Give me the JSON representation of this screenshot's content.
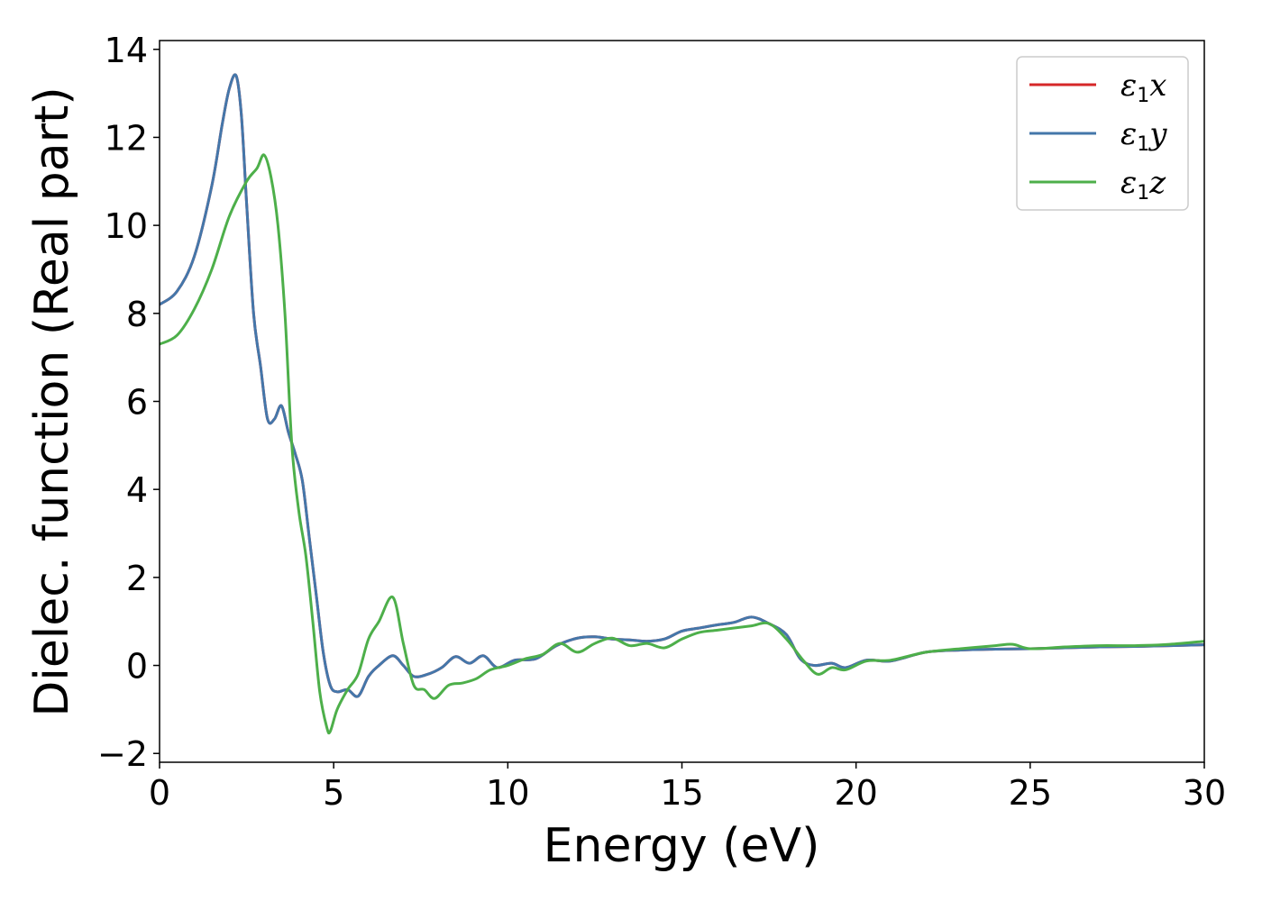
{
  "chart_data": {
    "type": "line",
    "xlabel": "Energy (eV)",
    "ylabel": "Dielec. function (Real part)",
    "xlim": [
      0,
      30
    ],
    "ylim": [
      -2.2,
      14.2
    ],
    "grid": false,
    "legend_position": "top-right",
    "x_ticks": [
      0,
      5,
      10,
      15,
      20,
      25,
      30
    ],
    "x_tick_labels": [
      "0",
      "5",
      "10",
      "15",
      "20",
      "25",
      "30"
    ],
    "y_ticks": [
      -2,
      0,
      2,
      4,
      6,
      8,
      10,
      12,
      14
    ],
    "y_tick_labels": [
      "−2",
      "0",
      "2",
      "4",
      "6",
      "8",
      "10",
      "12",
      "14"
    ],
    "series": [
      {
        "name": "ε1x",
        "legend_symbol": "ε",
        "legend_subscript": "1",
        "legend_suffix": "x",
        "color": "#d62728",
        "x": [
          0,
          0.5,
          1.0,
          1.5,
          1.8,
          2.0,
          2.2,
          2.35,
          2.5,
          2.7,
          2.9,
          3.1,
          3.3,
          3.5,
          3.7,
          3.9,
          4.1,
          4.3,
          4.5,
          4.7,
          4.9,
          5.1,
          5.4,
          5.7,
          6.0,
          6.3,
          6.7,
          7.0,
          7.3,
          7.7,
          8.1,
          8.5,
          8.9,
          9.3,
          9.7,
          10.2,
          10.8,
          11.4,
          12.0,
          12.5,
          13.0,
          13.5,
          14.0,
          14.5,
          15.0,
          15.5,
          16.0,
          16.5,
          17.0,
          17.5,
          18.0,
          18.4,
          18.8,
          19.3,
          19.7,
          20.3,
          21.0,
          22.0,
          23.0,
          24.0,
          25.0,
          26.0,
          27.0,
          28.0,
          29.0,
          30.0
        ],
        "y": [
          8.2,
          8.5,
          9.3,
          10.9,
          12.3,
          13.1,
          13.4,
          12.5,
          10.5,
          8.0,
          6.8,
          5.6,
          5.6,
          5.9,
          5.3,
          4.8,
          4.2,
          2.9,
          1.6,
          0.3,
          -0.45,
          -0.6,
          -0.55,
          -0.7,
          -0.25,
          0.0,
          0.22,
          0.0,
          -0.25,
          -0.2,
          -0.05,
          0.2,
          0.05,
          0.22,
          -0.05,
          0.12,
          0.15,
          0.45,
          0.62,
          0.65,
          0.6,
          0.58,
          0.55,
          0.6,
          0.78,
          0.85,
          0.92,
          0.98,
          1.1,
          0.95,
          0.7,
          0.15,
          0.0,
          0.05,
          -0.05,
          0.12,
          0.1,
          0.3,
          0.35,
          0.37,
          0.38,
          0.4,
          0.42,
          0.43,
          0.45,
          0.47
        ]
      },
      {
        "name": "ε1y",
        "legend_symbol": "ε",
        "legend_subscript": "1",
        "legend_suffix": "y",
        "color": "#4477aa",
        "x": [
          0,
          0.5,
          1.0,
          1.5,
          1.8,
          2.0,
          2.2,
          2.35,
          2.5,
          2.7,
          2.9,
          3.1,
          3.3,
          3.5,
          3.7,
          3.9,
          4.1,
          4.3,
          4.5,
          4.7,
          4.9,
          5.1,
          5.4,
          5.7,
          6.0,
          6.3,
          6.7,
          7.0,
          7.3,
          7.7,
          8.1,
          8.5,
          8.9,
          9.3,
          9.7,
          10.2,
          10.8,
          11.4,
          12.0,
          12.5,
          13.0,
          13.5,
          14.0,
          14.5,
          15.0,
          15.5,
          16.0,
          16.5,
          17.0,
          17.5,
          18.0,
          18.4,
          18.8,
          19.3,
          19.7,
          20.3,
          21.0,
          22.0,
          23.0,
          24.0,
          25.0,
          26.0,
          27.0,
          28.0,
          29.0,
          30.0
        ],
        "y": [
          8.2,
          8.5,
          9.3,
          10.9,
          12.3,
          13.1,
          13.4,
          12.5,
          10.5,
          8.0,
          6.8,
          5.6,
          5.6,
          5.9,
          5.3,
          4.8,
          4.2,
          2.9,
          1.6,
          0.3,
          -0.45,
          -0.6,
          -0.55,
          -0.7,
          -0.25,
          0.0,
          0.22,
          0.0,
          -0.25,
          -0.2,
          -0.05,
          0.2,
          0.05,
          0.22,
          -0.05,
          0.12,
          0.15,
          0.45,
          0.62,
          0.65,
          0.6,
          0.58,
          0.55,
          0.6,
          0.78,
          0.85,
          0.92,
          0.98,
          1.1,
          0.95,
          0.7,
          0.15,
          0.0,
          0.05,
          -0.05,
          0.12,
          0.1,
          0.3,
          0.35,
          0.37,
          0.38,
          0.4,
          0.42,
          0.43,
          0.45,
          0.47
        ]
      },
      {
        "name": "ε1z",
        "legend_symbol": "ε",
        "legend_subscript": "1",
        "legend_suffix": "z",
        "color": "#4daf4a",
        "x": [
          0,
          0.5,
          1.0,
          1.5,
          2.0,
          2.5,
          2.8,
          3.0,
          3.2,
          3.4,
          3.6,
          3.8,
          4.0,
          4.2,
          4.4,
          4.6,
          4.8,
          4.9,
          5.1,
          5.4,
          5.7,
          6.0,
          6.3,
          6.7,
          7.0,
          7.3,
          7.6,
          7.9,
          8.3,
          8.7,
          9.1,
          9.5,
          10.0,
          10.5,
          11.0,
          11.5,
          12.0,
          12.5,
          13.0,
          13.5,
          14.0,
          14.5,
          15.0,
          15.5,
          16.0,
          16.5,
          17.0,
          17.5,
          18.0,
          18.5,
          18.9,
          19.3,
          19.7,
          20.3,
          21.0,
          22.0,
          23.0,
          24.0,
          24.5,
          25.0,
          26.0,
          27.0,
          28.0,
          29.0,
          30.0
        ],
        "y": [
          7.3,
          7.5,
          8.1,
          9.0,
          10.2,
          11.0,
          11.3,
          11.6,
          11.1,
          10.0,
          8.0,
          5.0,
          3.5,
          2.5,
          1.0,
          -0.6,
          -1.4,
          -1.5,
          -1.0,
          -0.55,
          -0.2,
          0.6,
          1.0,
          1.55,
          0.5,
          -0.45,
          -0.55,
          -0.75,
          -0.45,
          -0.4,
          -0.3,
          -0.1,
          0.0,
          0.15,
          0.25,
          0.5,
          0.3,
          0.5,
          0.62,
          0.45,
          0.5,
          0.4,
          0.6,
          0.75,
          0.8,
          0.85,
          0.9,
          0.95,
          0.6,
          0.1,
          -0.2,
          -0.05,
          -0.1,
          0.1,
          0.12,
          0.3,
          0.38,
          0.45,
          0.48,
          0.38,
          0.42,
          0.45,
          0.45,
          0.48,
          0.55
        ]
      }
    ]
  }
}
